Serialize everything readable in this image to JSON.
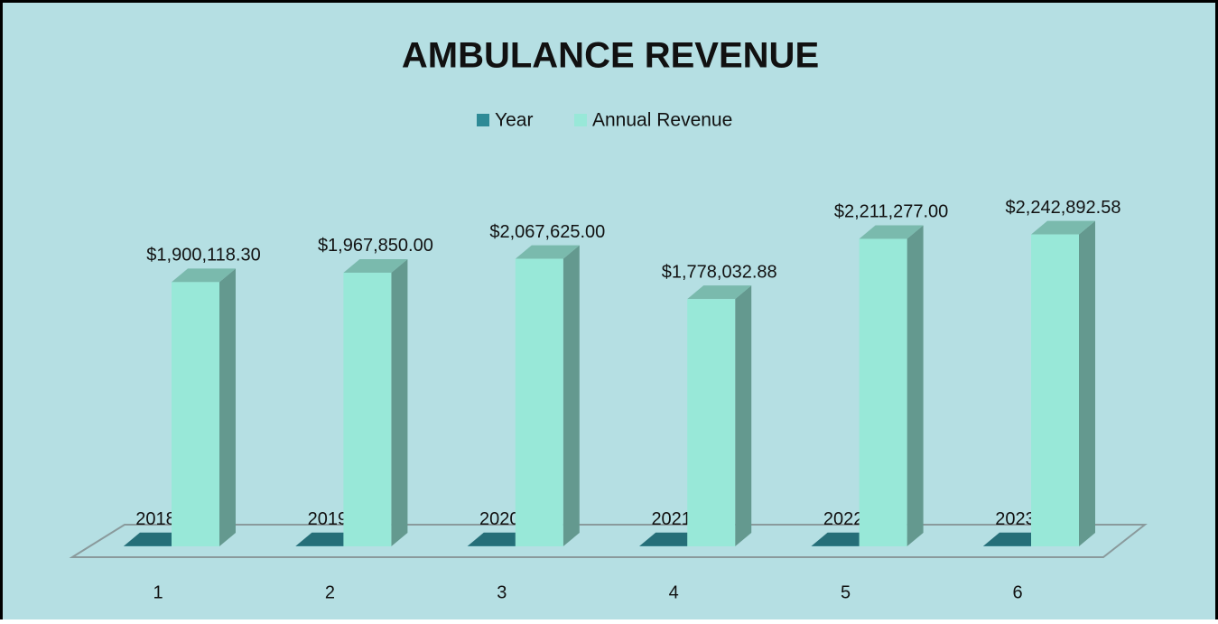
{
  "chart_data": {
    "type": "bar3d",
    "title": "AMBULANCE REVENUE",
    "categories": [
      "1",
      "2",
      "3",
      "4",
      "5",
      "6"
    ],
    "series": [
      {
        "name": "Year",
        "color": "#2e8a96",
        "values": [
          2018,
          2019,
          2020,
          2021,
          2022,
          2023
        ]
      },
      {
        "name": "Annual Revenue",
        "color": "#98e8d8",
        "values": [
          1900118.3,
          1967850.0,
          2067625.0,
          1778032.88,
          2211277.0,
          2242892.58
        ],
        "value_labels": [
          "$1,900,118.30",
          "$1,967,850.00",
          "$2,067,625.00",
          "$1,778,032.88",
          "$2,211,277.00",
          "$2,242,892.58"
        ]
      }
    ],
    "ylim": [
      0,
      2500000
    ],
    "legend": "top"
  }
}
